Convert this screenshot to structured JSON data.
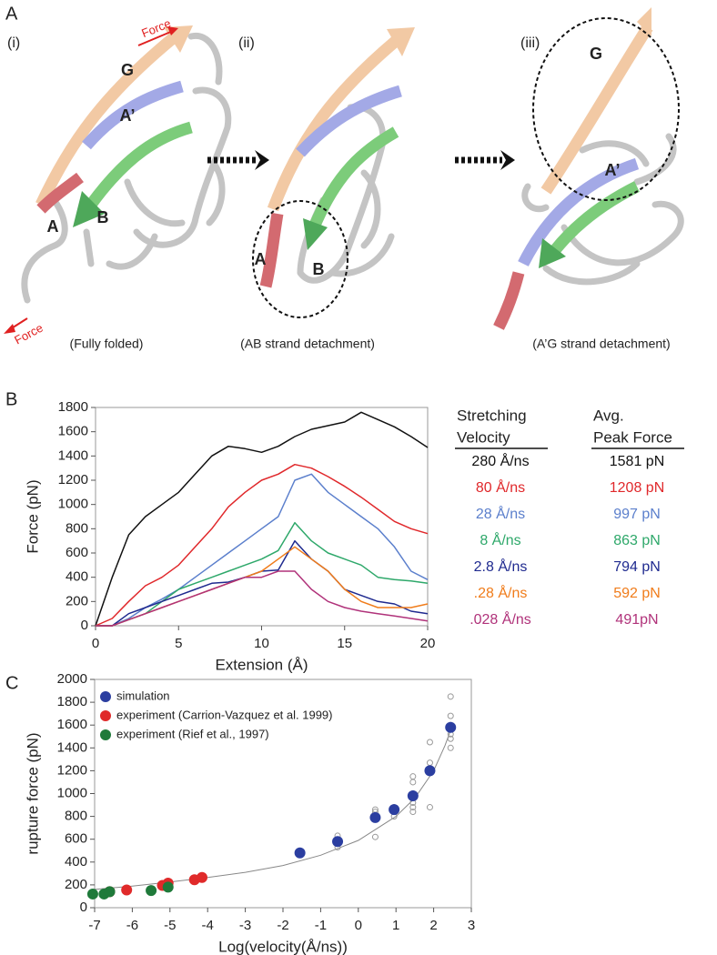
{
  "panel_a": {
    "label": "A",
    "states": [
      {
        "numeral": "(i)",
        "caption": "(Fully folded)",
        "strands": [
          "G",
          "A’",
          "A",
          "B"
        ]
      },
      {
        "numeral": "(ii)",
        "caption": "(AB strand detachment)",
        "strands": [
          "A",
          "B"
        ]
      },
      {
        "numeral": "(iii)",
        "caption": "(A’G strand detachment)",
        "strands": [
          "G",
          "A’"
        ]
      }
    ],
    "force_labels": [
      "Force",
      "Force"
    ]
  },
  "chart_data": [
    {
      "type": "line",
      "panel_label": "B",
      "xlabel": "Extension (Å)",
      "ylabel": "Force (pN)",
      "x": [
        0,
        1,
        2,
        3,
        4,
        5,
        6,
        7,
        8,
        9,
        10,
        11,
        12,
        13,
        14,
        15,
        16,
        17,
        18,
        19,
        20
      ],
      "xlim": [
        0,
        20
      ],
      "xticks": [
        0,
        5,
        10,
        15,
        20
      ],
      "ylim": [
        0,
        1800
      ],
      "yticks": [
        0,
        200,
        400,
        600,
        800,
        1000,
        1200,
        1400,
        1600,
        1800
      ],
      "legend_headers": [
        [
          "Stretching",
          "Velocity"
        ],
        [
          "Avg.",
          "Peak Force"
        ]
      ],
      "series": [
        {
          "name": "280 Å/ns",
          "peak_force": "1581 pN",
          "color": "#111111",
          "values": [
            0,
            400,
            750,
            900,
            1000,
            1100,
            1250,
            1400,
            1480,
            1460,
            1430,
            1480,
            1560,
            1620,
            1650,
            1680,
            1760,
            1700,
            1640,
            1560,
            1470
          ]
        },
        {
          "name": "80 Å/ns",
          "peak_force": "1208 pN",
          "color": "#e0282b",
          "values": [
            0,
            60,
            200,
            330,
            400,
            500,
            650,
            800,
            980,
            1100,
            1200,
            1250,
            1330,
            1300,
            1230,
            1150,
            1060,
            960,
            860,
            800,
            760
          ]
        },
        {
          "name": "28 Å/ns",
          "peak_force": "997 pN",
          "color": "#5b7fcc",
          "values": [
            0,
            0,
            60,
            150,
            220,
            300,
            400,
            500,
            600,
            700,
            800,
            900,
            1200,
            1250,
            1100,
            1000,
            900,
            800,
            650,
            450,
            380
          ]
        },
        {
          "name": "8 Å/ns",
          "peak_force": "863 pN",
          "color": "#2ea86a",
          "values": [
            0,
            0,
            50,
            100,
            200,
            300,
            350,
            400,
            450,
            500,
            550,
            620,
            850,
            700,
            600,
            550,
            500,
            400,
            380,
            370,
            350
          ]
        },
        {
          "name": "2.8 Å/ns",
          "peak_force": "794 pN",
          "color": "#1f2a8f",
          "values": [
            0,
            0,
            100,
            150,
            200,
            250,
            300,
            350,
            360,
            400,
            450,
            460,
            700,
            550,
            450,
            300,
            250,
            200,
            180,
            120,
            100
          ]
        },
        {
          "name": ".28 Å/ns",
          "peak_force": "592 pN",
          "color": "#f07c1a",
          "values": [
            0,
            0,
            50,
            100,
            150,
            200,
            250,
            300,
            350,
            400,
            450,
            550,
            650,
            550,
            450,
            300,
            200,
            150,
            150,
            150,
            180
          ]
        },
        {
          "name": ".028 Å/ns",
          "peak_force": "491pN",
          "color": "#b0327a",
          "values": [
            0,
            0,
            50,
            100,
            150,
            200,
            250,
            300,
            350,
            400,
            400,
            450,
            450,
            300,
            200,
            150,
            120,
            100,
            80,
            60,
            40
          ]
        }
      ]
    },
    {
      "type": "scatter",
      "panel_label": "C",
      "xlabel": "Log(velocity(Å/ns))",
      "ylabel": "rupture force (pN)",
      "xlim": [
        -7,
        3
      ],
      "xticks": [
        -7,
        -6,
        -5,
        -4,
        -3,
        -2,
        -1,
        0,
        1,
        2,
        3
      ],
      "ylim": [
        0,
        2000
      ],
      "yticks": [
        0,
        200,
        400,
        600,
        800,
        1000,
        1200,
        1400,
        1600,
        1800,
        2000
      ],
      "legend": "upper left",
      "series": [
        {
          "style": "curve",
          "color": "#888888",
          "x": [
            -7,
            -6,
            -5,
            -4,
            -3,
            -2,
            -1,
            0,
            1,
            1.5,
            2,
            2.3,
            2.5
          ],
          "values": [
            160,
            190,
            225,
            265,
            310,
            370,
            460,
            590,
            800,
            960,
            1200,
            1420,
            1600
          ]
        },
        {
          "style": "open",
          "color": "#999999",
          "x": [
            -0.55,
            -0.55,
            0.45,
            0.45,
            0.45,
            0.95,
            0.95,
            1.45,
            1.45,
            1.45,
            1.45,
            1.45,
            1.45,
            1.9,
            1.9,
            1.9,
            2.45,
            2.45,
            2.45,
            2.45,
            2.45,
            2.45
          ],
          "values": [
            530,
            630,
            620,
            840,
            860,
            800,
            880,
            840,
            880,
            920,
            1000,
            1100,
            1150,
            880,
            1270,
            1450,
            1400,
            1480,
            1520,
            1600,
            1680,
            1850
          ]
        },
        {
          "style": "filled",
          "name": "simulation",
          "color": "#2b3ea0",
          "x": [
            -1.55,
            -0.55,
            0.45,
            0.95,
            1.45,
            1.9,
            2.45
          ],
          "values": [
            480,
            580,
            790,
            860,
            980,
            1200,
            1580
          ]
        },
        {
          "style": "filled",
          "name": "experiment (Carrion-Vazquez et al. 1999)",
          "color": "#e02a2a",
          "x": [
            -6.6,
            -6.15,
            -5.2,
            -5.05,
            -4.35,
            -4.15
          ],
          "values": [
            140,
            155,
            195,
            215,
            245,
            265
          ]
        },
        {
          "style": "filled",
          "name": "experiment (Rief et al., 1997)",
          "color": "#1f7a3a",
          "x": [
            -7.05,
            -6.75,
            -6.6,
            -5.5,
            -5.05
          ],
          "values": [
            120,
            120,
            140,
            150,
            180
          ]
        }
      ]
    }
  ]
}
